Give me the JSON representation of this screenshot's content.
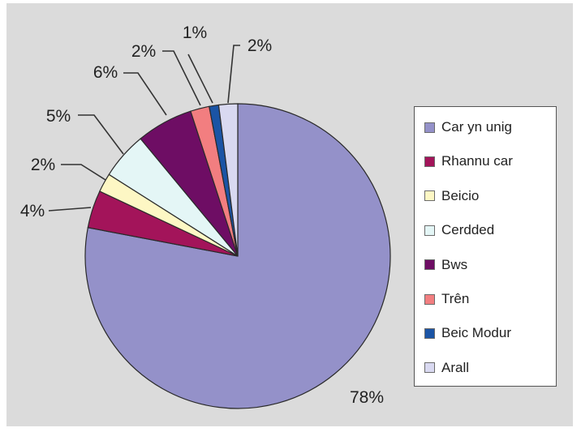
{
  "chart_data": {
    "type": "pie",
    "categories": [
      "Car yn unig",
      "Rhannu car",
      "Beicio",
      "Cerdded",
      "Bws",
      "Trên",
      "Beic Modur",
      "Arall"
    ],
    "values": [
      78,
      4,
      2,
      5,
      6,
      2,
      1,
      2
    ],
    "data_labels": [
      "78%",
      "4%",
      "2%",
      "5%",
      "6%",
      "2%",
      "1%",
      "2%"
    ],
    "colors": [
      "#9491c9",
      "#a3145a",
      "#fdf7c4",
      "#e4f6f6",
      "#6e0d64",
      "#f27e80",
      "#1b54a5",
      "#d9d9f1"
    ],
    "start": "top, clockwise from 12 o'clock",
    "legend": "right"
  }
}
